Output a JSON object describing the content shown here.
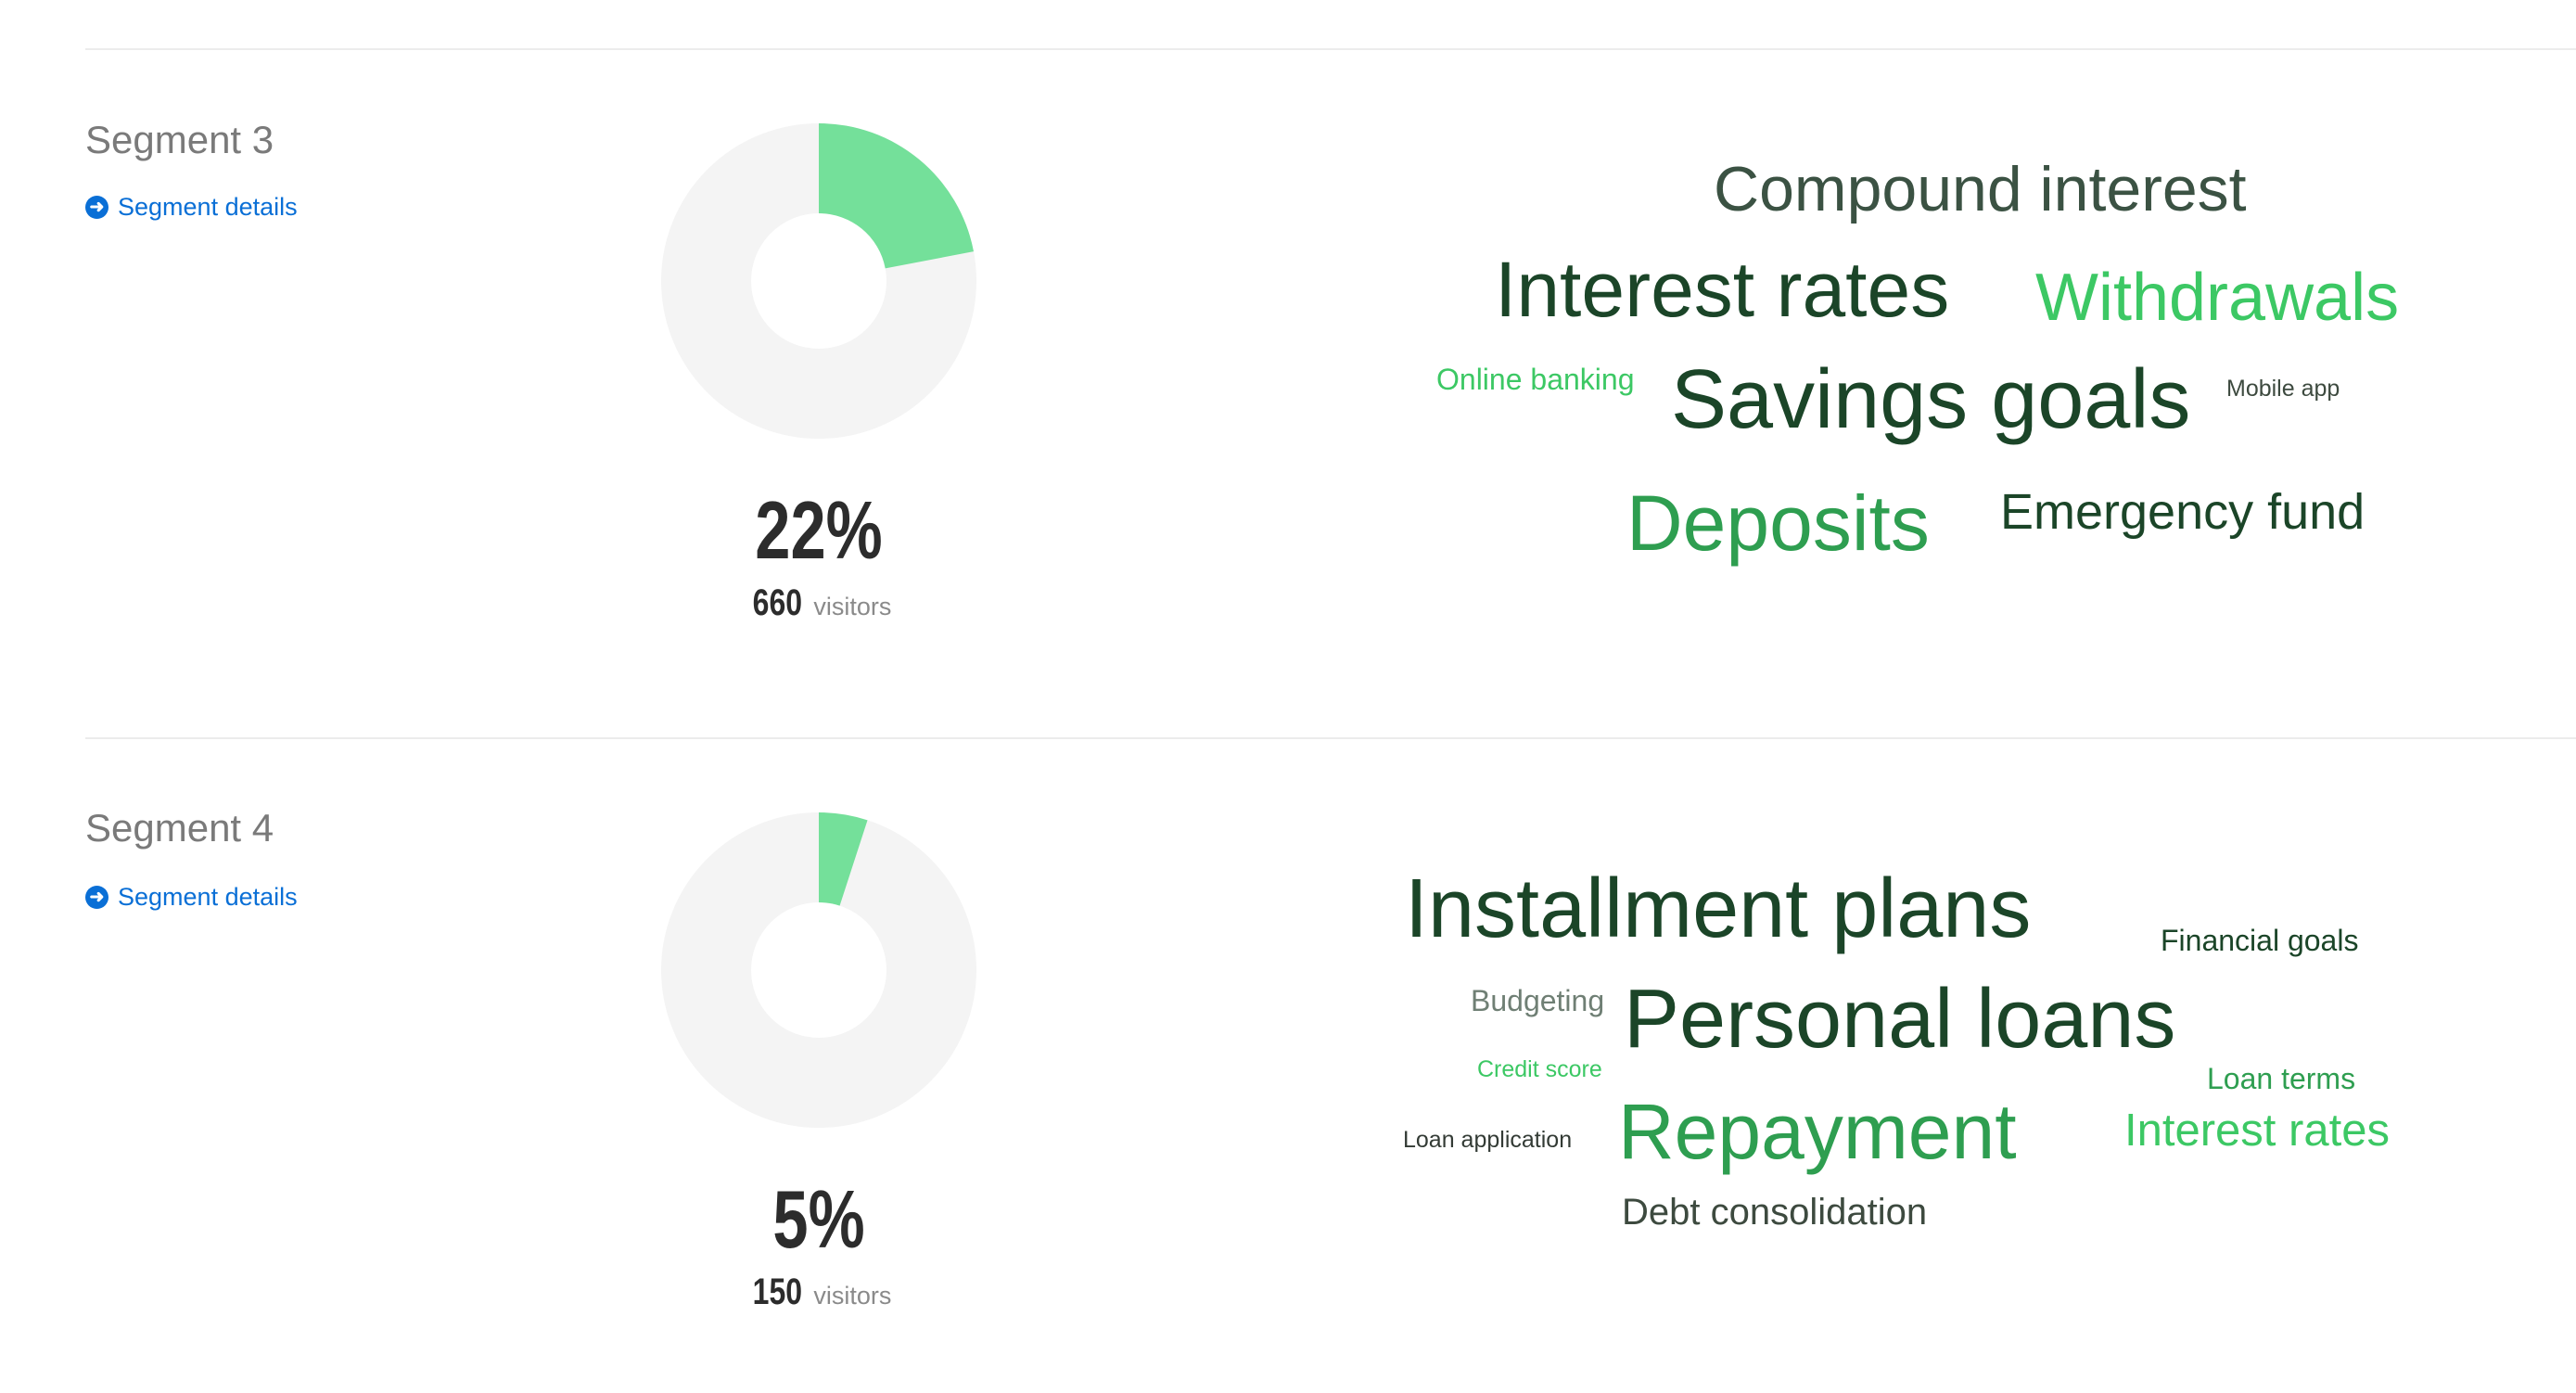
{
  "segments": [
    {
      "title": "Segment 3",
      "link_label": "Segment details",
      "link_icon": "arrow-circle-right-icon",
      "percent_label": "22%",
      "percent_value": 22,
      "visitors_count": "660",
      "visitors_label": "visitors",
      "words": [
        {
          "text": "Compound interest",
          "color": "#3b5243"
        },
        {
          "text": "Interest rates",
          "color": "#1b4528"
        },
        {
          "text": "Withdrawals",
          "color": "#3cc864"
        },
        {
          "text": "Online banking",
          "color": "#3cc864"
        },
        {
          "text": "Savings goals",
          "color": "#1b4528"
        },
        {
          "text": "Mobile app",
          "color": "#3d4a3f"
        },
        {
          "text": "Deposits",
          "color": "#2e9e50"
        },
        {
          "text": "Emergency fund",
          "color": "#1b4528"
        }
      ]
    },
    {
      "title": "Segment 4",
      "link_label": "Segment details",
      "link_icon": "arrow-circle-right-icon",
      "percent_label": "5%",
      "percent_value": 5,
      "visitors_count": "150",
      "visitors_label": "visitors",
      "words": [
        {
          "text": "Installment plans",
          "color": "#1b4528"
        },
        {
          "text": "Financial goals",
          "color": "#1b4528"
        },
        {
          "text": "Budgeting",
          "color": "#6f7f74"
        },
        {
          "text": "Personal loans",
          "color": "#1b4528"
        },
        {
          "text": "Credit score",
          "color": "#3cc864"
        },
        {
          "text": "Loan terms",
          "color": "#2e9e50"
        },
        {
          "text": "Loan application",
          "color": "#333b35"
        },
        {
          "text": "Repayment",
          "color": "#2e9e50"
        },
        {
          "text": "Interest rates",
          "color": "#3cc864"
        },
        {
          "text": "Debt consolidation",
          "color": "#3d4a3f"
        }
      ]
    }
  ],
  "colors": {
    "donut_fill": "#74e09a",
    "donut_track": "#f4f4f4",
    "link": "#0a6fd6"
  }
}
